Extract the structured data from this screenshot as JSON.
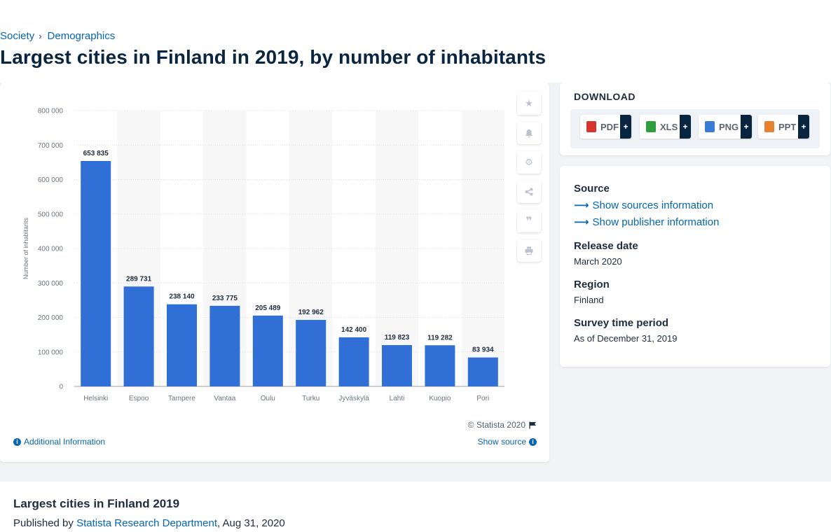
{
  "breadcrumb": {
    "items": [
      "Society",
      "Demographics"
    ]
  },
  "page": {
    "title": "Largest cities in Finland in 2019, by number of inhabitants"
  },
  "chart_data": {
    "type": "bar",
    "categories": [
      "Helsinki",
      "Espoo",
      "Tampere",
      "Vantaa",
      "Oulu",
      "Turku",
      "Jyväskylä",
      "Lahti",
      "Kuopio",
      "Pori"
    ],
    "values": [
      653835,
      289731,
      238140,
      233775,
      205489,
      192962,
      142400,
      119823,
      119282,
      83934
    ],
    "value_labels": [
      "653 835",
      "289 731",
      "238 140",
      "233 775",
      "205 489",
      "192 962",
      "142 400",
      "119 823",
      "119 282",
      "83 934"
    ],
    "ylabel": "Number of inhabitants",
    "ylim": [
      0,
      800000
    ],
    "yticks": [
      0,
      100000,
      200000,
      300000,
      400000,
      500000,
      600000,
      700000,
      800000
    ],
    "ytick_labels": [
      "0",
      "100 000",
      "200 000",
      "300 000",
      "400 000",
      "500 000",
      "600 000",
      "700 000",
      "800 000"
    ],
    "grid": true,
    "bar_color": "#2f6fd6"
  },
  "chart_footer": {
    "copyright": "© Statista 2020",
    "additional_info": "Additional Information",
    "show_source": "Show source"
  },
  "toolbar": {
    "icons": [
      "star-icon",
      "bell-icon",
      "gear-icon",
      "share-icon",
      "quote-icon",
      "print-icon"
    ]
  },
  "download": {
    "title": "DOWNLOAD",
    "formats": [
      {
        "label": "PDF",
        "color": "#d9342b"
      },
      {
        "label": "XLS",
        "color": "#2e9e3f"
      },
      {
        "label": "PNG",
        "color": "#3a7bd5"
      },
      {
        "label": "PPT",
        "color": "#e8812d"
      }
    ],
    "plus": "+"
  },
  "meta": {
    "source_label": "Source",
    "sources_link": "Show sources information",
    "publisher_link": "Show publisher information",
    "release_label": "Release date",
    "release_value": "March 2020",
    "region_label": "Region",
    "region_value": "Finland",
    "survey_label": "Survey time period",
    "survey_value": "As of December 31, 2019"
  },
  "bottom": {
    "title": "Largest cities in Finland 2019",
    "published_prefix": "Published by",
    "publisher": "Statista Research Department",
    "date": ", Aug 31, 2020"
  }
}
